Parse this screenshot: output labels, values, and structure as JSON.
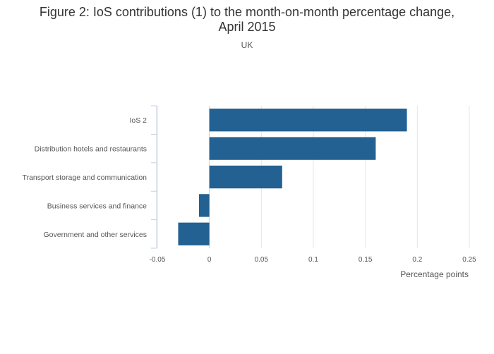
{
  "chart_data": {
    "type": "bar",
    "orientation": "horizontal",
    "title_line1": "Figure 2: IoS contributions (1) to the month-on-month percentage change,",
    "title_line2": "April 2015",
    "subtitle": "UK",
    "xlabel": "Percentage points",
    "ylabel": "",
    "categories": [
      "IoS 2",
      "Distribution hotels and restaurants",
      "Transport storage and communication",
      "Business services and finance",
      "Government and other services"
    ],
    "values": [
      0.19,
      0.16,
      0.07,
      -0.01,
      -0.03
    ],
    "xlim": [
      -0.05,
      0.25
    ],
    "xticks": [
      -0.05,
      0,
      0.05,
      0.1,
      0.15,
      0.2,
      0.25
    ],
    "xtick_labels": [
      "-0.05",
      "0",
      "0.05",
      "0.1",
      "0.15",
      "0.2",
      "0.25"
    ],
    "bar_color": "#236192",
    "grid": true
  }
}
